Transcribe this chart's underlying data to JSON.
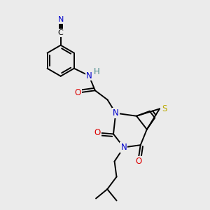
{
  "background_color": "#ebebeb",
  "atom_colors": {
    "C": "#000000",
    "N": "#0000cc",
    "O": "#dd0000",
    "S": "#bbaa00",
    "H": "#448888"
  },
  "bond_color": "#000000",
  "bond_width": 1.4,
  "font_size": 8.5
}
